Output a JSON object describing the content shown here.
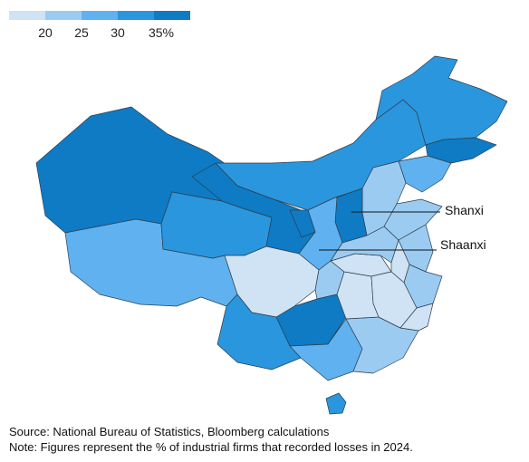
{
  "legend": {
    "colors": [
      "#cfe3f4",
      "#9ccbf2",
      "#5fb2ef",
      "#2a96dd",
      "#0e7bc4"
    ],
    "ticks": [
      "20",
      "25",
      "30",
      "35%"
    ]
  },
  "map": {
    "labels": {
      "shanxi": "Shanxi",
      "shaanxi": "Shaanxi"
    },
    "regions": [
      {
        "key": "xinjiang",
        "color": "#0e7bc4"
      },
      {
        "key": "tibet",
        "color": "#5fb2ef"
      },
      {
        "key": "qinghai",
        "color": "#2a96dd"
      },
      {
        "key": "gansu",
        "color": "#0e7bc4"
      },
      {
        "key": "inner-mongolia",
        "color": "#2a96dd"
      },
      {
        "key": "heilongjiang",
        "color": "#2a96dd"
      },
      {
        "key": "jilin",
        "color": "#0e7bc4"
      },
      {
        "key": "liaoning",
        "color": "#5fb2ef"
      },
      {
        "key": "hebei",
        "color": "#9ccbf2"
      },
      {
        "key": "shanxi",
        "color": "#0e7bc4"
      },
      {
        "key": "shaanxi",
        "color": "#5fb2ef"
      },
      {
        "key": "ningxia",
        "color": "#0e7bc4"
      },
      {
        "key": "sichuan",
        "color": "#cfe3f4"
      },
      {
        "key": "chongqing",
        "color": "#9ccbf2"
      },
      {
        "key": "yunnan",
        "color": "#2a96dd"
      },
      {
        "key": "guizhou",
        "color": "#0e7bc4"
      },
      {
        "key": "guangxi",
        "color": "#5fb2ef"
      },
      {
        "key": "guangdong",
        "color": "#9ccbf2"
      },
      {
        "key": "hunan",
        "color": "#cfe3f4"
      },
      {
        "key": "hubei",
        "color": "#cfe3f4"
      },
      {
        "key": "henan",
        "color": "#9ccbf2"
      },
      {
        "key": "shandong",
        "color": "#9ccbf2"
      },
      {
        "key": "jiangsu",
        "color": "#9ccbf2"
      },
      {
        "key": "anhui",
        "color": "#cfe3f4"
      },
      {
        "key": "zhejiang",
        "color": "#9ccbf2"
      },
      {
        "key": "jiangxi",
        "color": "#cfe3f4"
      },
      {
        "key": "fujian",
        "color": "#cfe3f4"
      },
      {
        "key": "hainan",
        "color": "#2a96dd"
      }
    ]
  },
  "footer": {
    "source": "Source: National Bureau of Statistics, Bloomberg calculations",
    "note": "Note: Figures represent the % of industrial firms that recorded losses in 2024."
  }
}
